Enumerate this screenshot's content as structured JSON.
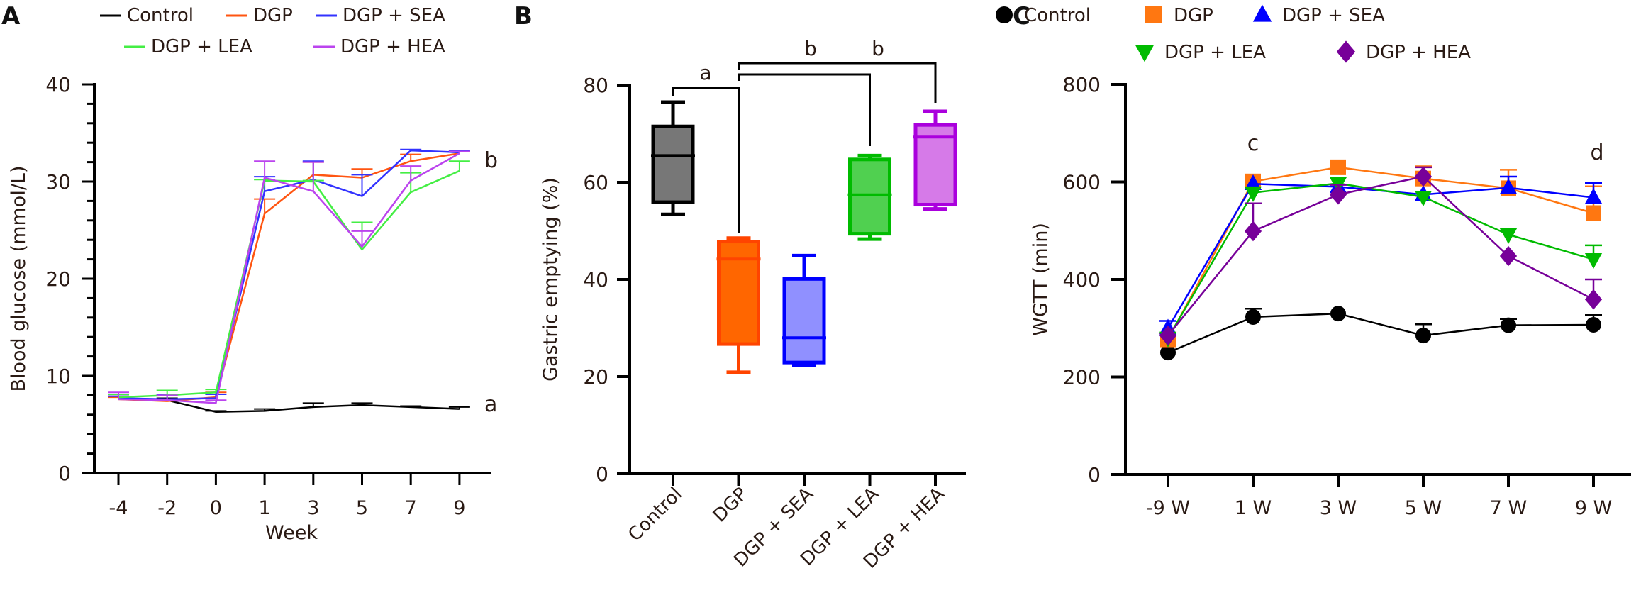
{
  "chart_data": [
    {
      "panel_label": "A",
      "type": "line",
      "xlabel": "Week",
      "ylabel": "Blood glucose (mmol/L)",
      "x": [
        "-4",
        "-2",
        "0",
        "1",
        "3",
        "5",
        "7",
        "9"
      ],
      "ylim": [
        0,
        40
      ],
      "yticks": [
        "0",
        "10",
        "20",
        "30",
        "40"
      ],
      "legend": "top",
      "series": [
        {
          "name": "Control",
          "color": "#000000",
          "values": [
            7.7,
            7.5,
            6.3,
            6.4,
            6.8,
            7.0,
            6.8,
            6.6
          ],
          "err": [
            0.2,
            0.2,
            0.1,
            0.2,
            0.4,
            0.2,
            0.1,
            0.2
          ]
        },
        {
          "name": "DGP",
          "color": "#ff5511",
          "values": [
            7.6,
            7.4,
            7.8,
            26.7,
            30.7,
            30.4,
            32.1,
            32.9
          ],
          "err": [
            0.2,
            0.2,
            0.5,
            1.5,
            1.3,
            0.9,
            0.7,
            0.2
          ]
        },
        {
          "name": "DGP + SEA",
          "color": "#3333ff",
          "values": [
            7.7,
            7.6,
            7.7,
            29.0,
            30.2,
            28.5,
            33.2,
            33.0
          ],
          "err": [
            0.2,
            0.5,
            0.4,
            1.5,
            1.9,
            2.2,
            0.1,
            0.2
          ]
        },
        {
          "name": "DGP + LEA",
          "color": "#44ee44",
          "values": [
            7.8,
            8.0,
            8.3,
            30.1,
            30.0,
            23.0,
            28.9,
            31.1
          ],
          "err": [
            0.3,
            0.5,
            0.3,
            0.1,
            0.1,
            2.8,
            2.0,
            1.0
          ]
        },
        {
          "name": "DGP + HEA",
          "color": "#bb44ee",
          "values": [
            7.6,
            7.5,
            7.2,
            30.4,
            29.0,
            23.3,
            30.1,
            32.9
          ],
          "err": [
            0.7,
            0.5,
            0.3,
            1.7,
            3.0,
            1.6,
            1.5,
            0.2
          ]
        }
      ],
      "annotations": [
        {
          "text": "b",
          "near": "DGP + SEA",
          "at": "9"
        },
        {
          "text": "a",
          "near": "Control",
          "at": "9"
        }
      ]
    },
    {
      "panel_label": "B",
      "type": "box",
      "ylabel": "Gastric emptying (%)",
      "categories": [
        "Control",
        "DGP",
        "DGP + SEA",
        "DGP + LEA",
        "DGP + HEA"
      ],
      "ylim": [
        0,
        80
      ],
      "yticks": [
        "0",
        "20",
        "40",
        "60",
        "80"
      ],
      "boxes": [
        {
          "name": "Control",
          "fill": "#777777",
          "stroke": "#000000",
          "min": 53.4,
          "q1": 55.9,
          "median": 65.5,
          "q3": 71.5,
          "max": 76.5
        },
        {
          "name": "DGP",
          "fill": "#ff6600",
          "stroke": "#ff4400",
          "min": 20.9,
          "q1": 26.7,
          "median": 44.2,
          "q3": 47.8,
          "max": 48.5
        },
        {
          "name": "DGP + SEA",
          "fill": "#9090ff",
          "stroke": "#0000ff",
          "min": 22.3,
          "q1": 22.9,
          "median": 28.0,
          "q3": 40.1,
          "max": 44.9
        },
        {
          "name": "DGP + LEA",
          "fill": "#50d050",
          "stroke": "#00bb00",
          "min": 48.3,
          "q1": 49.4,
          "median": 57.4,
          "q3": 64.7,
          "max": 65.5
        },
        {
          "name": "DGP + HEA",
          "fill": "#d67ae8",
          "stroke": "#aa00dd",
          "min": 54.5,
          "q1": 55.4,
          "median": 69.3,
          "q3": 71.8,
          "max": 74.6
        }
      ],
      "comparisons": [
        {
          "from": "Control",
          "to": "DGP",
          "label": "a"
        },
        {
          "from": "DGP",
          "to": "DGP + LEA",
          "label": "b"
        },
        {
          "from": "DGP",
          "to": "DGP + HEA",
          "label": "b"
        }
      ]
    },
    {
      "panel_label": "C",
      "type": "line",
      "ylabel": "WGTT (min)",
      "x": [
        "-9 W",
        "1 W",
        "3 W",
        "5 W",
        "7 W",
        "9 W"
      ],
      "ylim": [
        0,
        800
      ],
      "yticks": [
        "0",
        "200",
        "400",
        "600",
        "800"
      ],
      "legend": "top",
      "series": [
        {
          "name": "Control",
          "marker": "circle",
          "color": "#000000",
          "values": [
            250,
            323,
            330,
            285,
            306,
            307
          ],
          "err": [
            0,
            17,
            0,
            23,
            13,
            20
          ]
        },
        {
          "name": "DGP",
          "marker": "square",
          "color": "#ff7711",
          "values": [
            277,
            601,
            630,
            607,
            587,
            536
          ],
          "err": [
            12,
            0,
            0,
            25,
            38,
            55
          ]
        },
        {
          "name": "DGP + SEA",
          "marker": "triangle-up",
          "color": "#0000ff",
          "values": [
            300,
            596,
            590,
            574,
            588,
            568
          ],
          "err": [
            15,
            0,
            0,
            0,
            23,
            30
          ]
        },
        {
          "name": "DGP + LEA",
          "marker": "triangle-down",
          "color": "#00bb00",
          "values": [
            280,
            578,
            597,
            569,
            492,
            441
          ],
          "err": [
            0,
            0,
            0,
            0,
            0,
            29
          ]
        },
        {
          "name": "DGP + HEA",
          "marker": "diamond",
          "color": "#770099",
          "values": [
            285,
            499,
            574,
            611,
            448,
            359
          ],
          "err": [
            0,
            57,
            20,
            19,
            0,
            41
          ]
        }
      ],
      "annotations": [
        {
          "text": "c",
          "at": "1 W"
        },
        {
          "text": "d",
          "at": "9 W"
        }
      ]
    }
  ]
}
